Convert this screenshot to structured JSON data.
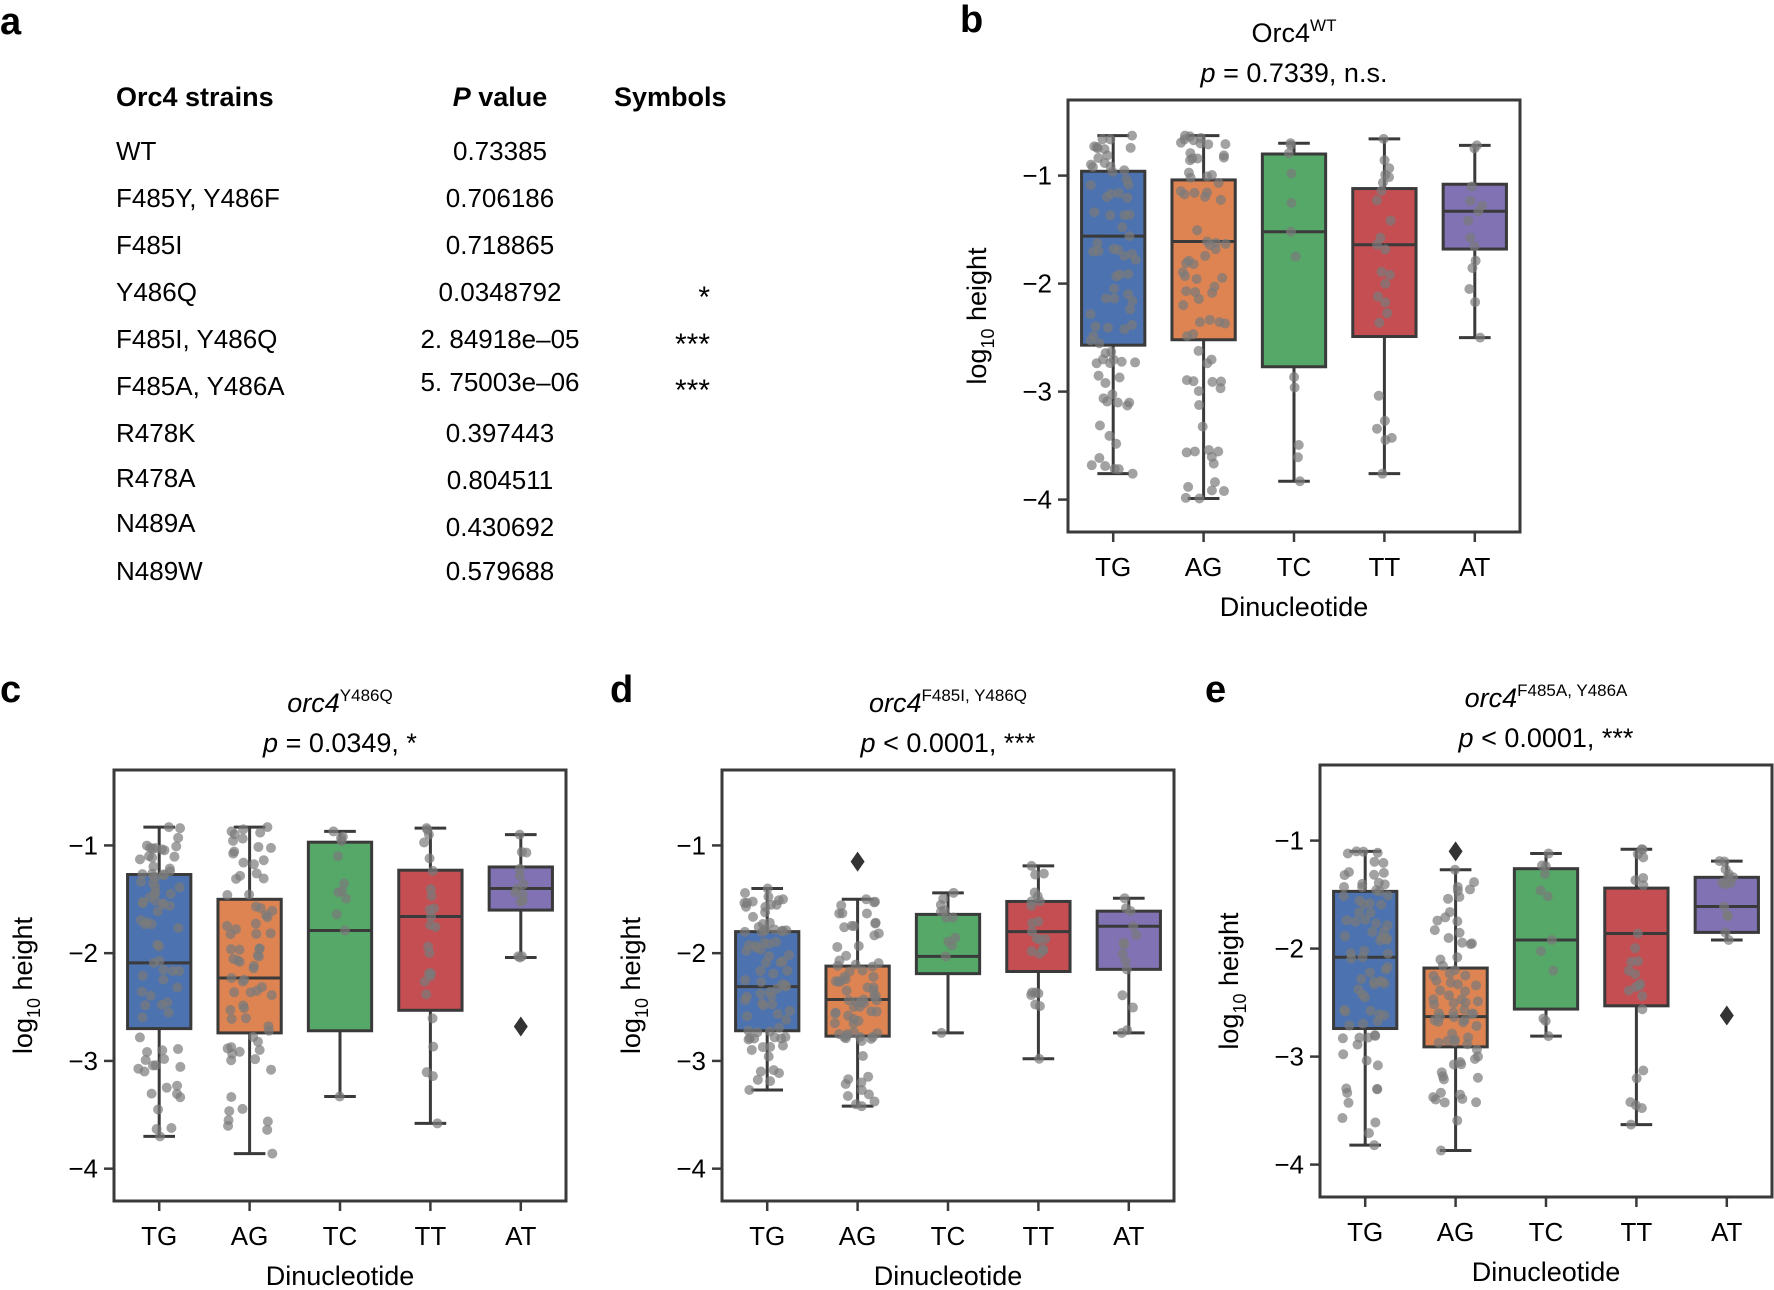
{
  "panel_a": {
    "letter": "a",
    "headers": {
      "strain": "Orc4 strains",
      "p_italic": "P",
      "p_rest": " value",
      "symbols": "Symbols"
    },
    "rows": [
      {
        "strain": "WT",
        "p": "0.73385",
        "sym": ""
      },
      {
        "strain": "F485Y, Y486F",
        "p": "0.706186",
        "sym": ""
      },
      {
        "strain": "F485I",
        "p": "0.718865",
        "sym": ""
      },
      {
        "strain": "Y486Q",
        "p": "0.0348792",
        "sym": "*"
      },
      {
        "strain": "F485I, Y486Q",
        "p": "2. 84918e–05",
        "sym": "***"
      },
      {
        "strain": "F485A, Y486A",
        "p": "5. 75003e–06",
        "sym": "***"
      },
      {
        "strain": "R478K",
        "p": "0.397443",
        "sym": ""
      },
      {
        "strain": "R478A",
        "p": "0.804511",
        "sym": ""
      },
      {
        "strain": "N489A",
        "p": "0.430692",
        "sym": ""
      },
      {
        "strain": "N489W",
        "p": "0.579688",
        "sym": ""
      }
    ]
  },
  "colors": {
    "TG": "#4c72b0",
    "AG": "#dd8452",
    "TC": "#55a868",
    "TT": "#c44e52",
    "AT": "#8172b3",
    "frame": "#3a3a3a",
    "point": "#7a7a7a"
  },
  "chart_data": [
    {
      "letter": "b",
      "type": "box",
      "title": {
        "gene": "Orc4",
        "gene_italic": false,
        "sup": "WT",
        "p_italic": "p",
        "p_rest": " = 0.7339, n.s."
      },
      "xlabel": "Dinucleotide",
      "ylabel_pre": "log",
      "ylabel_sub": "10",
      "ylabel_post": " height",
      "categories": [
        "TG",
        "AG",
        "TC",
        "TT",
        "AT"
      ],
      "ylim": [
        -4.3,
        -0.3
      ],
      "yticks": [
        -1,
        -2,
        -3,
        -4
      ],
      "ytick_labels": [
        "−1",
        "−2",
        "−3",
        "−4"
      ],
      "boxes": [
        {
          "q1": -2.57,
          "median": -1.56,
          "q3": -0.96,
          "low": -3.76,
          "high": -0.63,
          "n": 80,
          "outliers": []
        },
        {
          "q1": -2.52,
          "median": -1.61,
          "q3": -1.04,
          "low": -3.99,
          "high": -0.63,
          "n": 75,
          "outliers": []
        },
        {
          "q1": -2.77,
          "median": -1.52,
          "q3": -0.8,
          "low": -3.83,
          "high": -0.7,
          "n": 12,
          "outliers": []
        },
        {
          "q1": -2.49,
          "median": -1.64,
          "q3": -1.12,
          "low": -3.76,
          "high": -0.66,
          "n": 25,
          "outliers": []
        },
        {
          "q1": -1.68,
          "median": -1.33,
          "q3": -1.08,
          "low": -2.5,
          "high": -0.72,
          "n": 14,
          "outliers": []
        }
      ]
    },
    {
      "letter": "c",
      "type": "box",
      "title": {
        "gene": "orc4",
        "gene_italic": true,
        "sup": "Y486Q",
        "p_italic": "p",
        "p_rest": " = 0.0349, *"
      },
      "xlabel": "Dinucleotide",
      "ylabel_pre": "log",
      "ylabel_sub": "10",
      "ylabel_post": " height",
      "categories": [
        "TG",
        "AG",
        "TC",
        "TT",
        "AT"
      ],
      "ylim": [
        -4.3,
        -0.3
      ],
      "yticks": [
        -1,
        -2,
        -3,
        -4
      ],
      "ytick_labels": [
        "−1",
        "−2",
        "−3",
        "−4"
      ],
      "boxes": [
        {
          "q1": -2.7,
          "median": -2.09,
          "q3": -1.27,
          "low": -3.7,
          "high": -0.83,
          "n": 80,
          "outliers": []
        },
        {
          "q1": -2.74,
          "median": -2.23,
          "q3": -1.5,
          "low": -3.86,
          "high": -0.83,
          "n": 75,
          "outliers": []
        },
        {
          "q1": -2.72,
          "median": -1.79,
          "q3": -0.97,
          "low": -3.33,
          "high": -0.87,
          "n": 12,
          "outliers": []
        },
        {
          "q1": -2.53,
          "median": -1.66,
          "q3": -1.23,
          "low": -3.58,
          "high": -0.84,
          "n": 25,
          "outliers": []
        },
        {
          "q1": -1.6,
          "median": -1.4,
          "q3": -1.2,
          "low": -2.04,
          "high": -0.9,
          "n": 14,
          "outliers": [
            -2.68
          ]
        }
      ]
    },
    {
      "letter": "d",
      "type": "box",
      "title": {
        "gene": "orc4",
        "gene_italic": true,
        "sup": "F485I, Y486Q",
        "p_italic": "p",
        "p_rest": " < 0.0001, ***"
      },
      "xlabel": "Dinucleotide",
      "ylabel_pre": "log",
      "ylabel_sub": "10",
      "ylabel_post": " height",
      "categories": [
        "TG",
        "AG",
        "TC",
        "TT",
        "AT"
      ],
      "ylim": [
        -4.3,
        -0.3
      ],
      "yticks": [
        -1,
        -2,
        -3,
        -4
      ],
      "ytick_labels": [
        "−1",
        "−2",
        "−3",
        "−4"
      ],
      "boxes": [
        {
          "q1": -2.72,
          "median": -2.31,
          "q3": -1.8,
          "low": -3.27,
          "high": -1.4,
          "n": 80,
          "outliers": []
        },
        {
          "q1": -2.77,
          "median": -2.43,
          "q3": -2.12,
          "low": -3.42,
          "high": -1.5,
          "n": 75,
          "outliers": [
            -1.15
          ]
        },
        {
          "q1": -2.19,
          "median": -2.03,
          "q3": -1.64,
          "low": -2.74,
          "high": -1.44,
          "n": 12,
          "outliers": []
        },
        {
          "q1": -2.17,
          "median": -1.8,
          "q3": -1.52,
          "low": -2.98,
          "high": -1.19,
          "n": 25,
          "outliers": []
        },
        {
          "q1": -2.15,
          "median": -1.75,
          "q3": -1.61,
          "low": -2.74,
          "high": -1.49,
          "n": 14,
          "outliers": []
        }
      ]
    },
    {
      "letter": "e",
      "type": "box",
      "title": {
        "gene": "orc4",
        "gene_italic": true,
        "sup": "F485A, Y486A",
        "p_italic": "p",
        "p_rest": " < 0.0001, ***"
      },
      "xlabel": "Dinucleotide",
      "ylabel_pre": "log",
      "ylabel_sub": "10",
      "ylabel_post": " height",
      "categories": [
        "TG",
        "AG",
        "TC",
        "TT",
        "AT"
      ],
      "ylim": [
        -4.3,
        -0.3
      ],
      "yticks": [
        -1,
        -2,
        -3,
        -4
      ],
      "ytick_labels": [
        "−1",
        "−2",
        "−3",
        "−4"
      ],
      "boxes": [
        {
          "q1": -2.74,
          "median": -2.08,
          "q3": -1.47,
          "low": -3.82,
          "high": -1.1,
          "n": 80,
          "outliers": []
        },
        {
          "q1": -2.91,
          "median": -2.63,
          "q3": -2.18,
          "low": -3.87,
          "high": -1.27,
          "n": 75,
          "outliers": [
            -1.1
          ]
        },
        {
          "q1": -2.56,
          "median": -1.92,
          "q3": -1.26,
          "low": -2.81,
          "high": -1.12,
          "n": 12,
          "outliers": []
        },
        {
          "q1": -2.53,
          "median": -1.86,
          "q3": -1.44,
          "low": -3.63,
          "high": -1.08,
          "n": 25,
          "outliers": []
        },
        {
          "q1": -1.85,
          "median": -1.61,
          "q3": -1.34,
          "low": -1.92,
          "high": -1.19,
          "n": 14,
          "outliers": [
            -2.62
          ]
        }
      ]
    }
  ]
}
